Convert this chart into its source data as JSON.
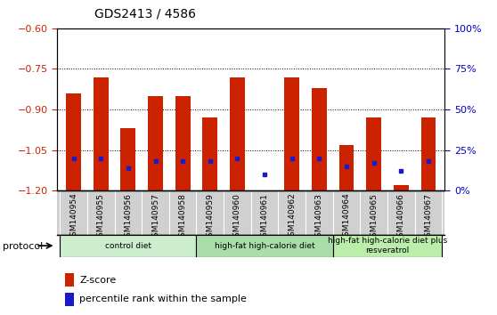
{
  "title": "GDS2413 / 4586",
  "samples": [
    "GSM140954",
    "GSM140955",
    "GSM140956",
    "GSM140957",
    "GSM140958",
    "GSM140959",
    "GSM140960",
    "GSM140961",
    "GSM140962",
    "GSM140963",
    "GSM140964",
    "GSM140965",
    "GSM140966",
    "GSM140967"
  ],
  "zscore": [
    -0.84,
    -0.78,
    -0.97,
    -0.85,
    -0.85,
    -0.93,
    -0.78,
    -1.205,
    -0.78,
    -0.82,
    -1.03,
    -0.93,
    -1.18,
    -0.93
  ],
  "pct_values": [
    20,
    20,
    14,
    18,
    18,
    18,
    20,
    10,
    20,
    20,
    15,
    17,
    12,
    18
  ],
  "bar_color": "#cc2200",
  "dot_color": "#1a1acc",
  "ymin": -1.2,
  "ymax": -0.6,
  "yticks_left": [
    -1.2,
    -1.05,
    -0.9,
    -0.75,
    -0.6
  ],
  "yticks_right_pct": [
    0,
    25,
    50,
    75,
    100
  ],
  "bar_width": 0.55,
  "groups": [
    {
      "label": "control diet",
      "start": 0,
      "end": 5,
      "color": "#cceecc"
    },
    {
      "label": "high-fat high-calorie diet",
      "start": 5,
      "end": 10,
      "color": "#aaddaa"
    },
    {
      "label": "high-fat high-calorie diet plus\nresveratrol",
      "start": 10,
      "end": 14,
      "color": "#bbeeaa"
    }
  ],
  "legend_zscore_label": "Z-score",
  "legend_pct_label": "percentile rank within the sample",
  "protocol_label": "protocol",
  "gray_bg": "#d0d0d0",
  "tick_color_left": "#cc2200",
  "tick_color_right": "#0000cc",
  "dotted_line_ticks": [
    -1.05,
    -0.9,
    -0.75
  ]
}
